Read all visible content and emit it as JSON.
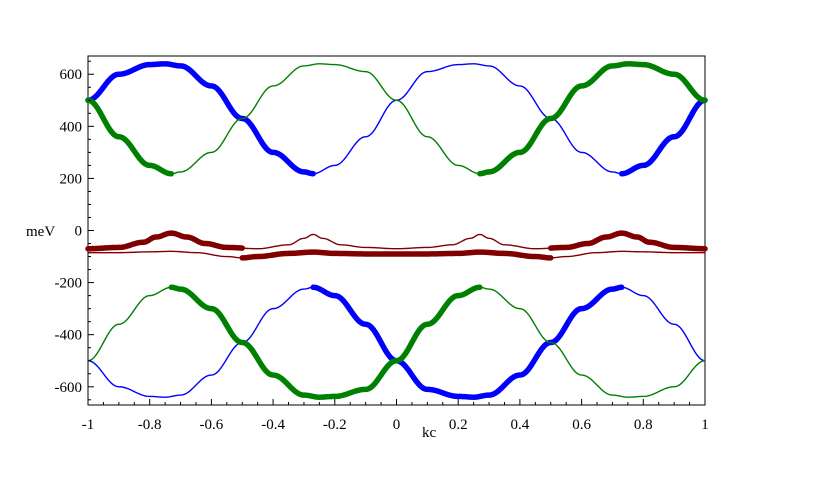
{
  "chart_data": {
    "type": "line",
    "title": "",
    "xlabel": "kc",
    "ylabel": "meV",
    "xlim": [
      -1,
      1
    ],
    "ylim": [
      -670,
      670
    ],
    "x_ticks": [
      -1,
      -0.8,
      -0.6,
      -0.4,
      -0.2,
      0,
      0.2,
      0.4,
      0.6,
      0.8,
      1
    ],
    "x_tick_labels": [
      "-1",
      "-0.8",
      "-0.6",
      "-0.4",
      "-0.2",
      "0",
      "0.2",
      "0.4",
      "0.6",
      "0.8",
      "1"
    ],
    "y_ticks": [
      -600,
      -400,
      -200,
      0,
      200,
      400,
      600
    ],
    "y_tick_labels": [
      "-600",
      "-400",
      "-200",
      "0",
      "200",
      "400",
      "600"
    ],
    "grid": false,
    "colors": {
      "blue": "#0000ff",
      "green": "#008000",
      "darkred": "#800000"
    },
    "series": [
      {
        "color": "#0000ff",
        "points": [
          [
            -1,
            500
          ],
          [
            -0.9,
            600
          ],
          [
            -0.8,
            637
          ],
          [
            -0.75,
            640
          ],
          [
            -0.7,
            632
          ],
          [
            -0.6,
            555
          ],
          [
            -0.5,
            430
          ],
          [
            -0.4,
            300
          ],
          [
            -0.3,
            225
          ],
          [
            -0.27,
            218
          ],
          [
            -0.2,
            250
          ],
          [
            -0.1,
            360
          ],
          [
            0,
            500
          ],
          [
            0.1,
            610
          ],
          [
            0.2,
            637
          ],
          [
            0.25,
            640
          ],
          [
            0.3,
            632
          ],
          [
            0.4,
            555
          ],
          [
            0.5,
            430
          ],
          [
            0.6,
            300
          ],
          [
            0.7,
            225
          ],
          [
            0.73,
            218
          ],
          [
            0.8,
            250
          ],
          [
            0.9,
            360
          ],
          [
            1,
            500
          ]
        ],
        "thick_ranges": [
          [
            -1,
            -0.27
          ],
          [
            0.73,
            1
          ]
        ]
      },
      {
        "color": "#008000",
        "points": [
          [
            -1,
            500
          ],
          [
            -0.9,
            360
          ],
          [
            -0.8,
            250
          ],
          [
            -0.73,
            218
          ],
          [
            -0.7,
            225
          ],
          [
            -0.6,
            300
          ],
          [
            -0.5,
            430
          ],
          [
            -0.4,
            555
          ],
          [
            -0.3,
            632
          ],
          [
            -0.25,
            640
          ],
          [
            -0.2,
            637
          ],
          [
            -0.1,
            610
          ],
          [
            0,
            500
          ],
          [
            0.1,
            360
          ],
          [
            0.2,
            250
          ],
          [
            0.27,
            218
          ],
          [
            0.3,
            225
          ],
          [
            0.4,
            300
          ],
          [
            0.5,
            430
          ],
          [
            0.6,
            555
          ],
          [
            0.7,
            632
          ],
          [
            0.75,
            640
          ],
          [
            0.8,
            637
          ],
          [
            0.9,
            600
          ],
          [
            1,
            500
          ]
        ],
        "thick_ranges": [
          [
            -1,
            -0.73
          ],
          [
            0.27,
            1
          ]
        ]
      },
      {
        "color": "#0000ff",
        "points": [
          [
            -1,
            -500
          ],
          [
            -0.9,
            -600
          ],
          [
            -0.8,
            -637
          ],
          [
            -0.75,
            -640
          ],
          [
            -0.7,
            -632
          ],
          [
            -0.6,
            -555
          ],
          [
            -0.5,
            -430
          ],
          [
            -0.4,
            -300
          ],
          [
            -0.3,
            -225
          ],
          [
            -0.27,
            -218
          ],
          [
            -0.2,
            -250
          ],
          [
            -0.1,
            -360
          ],
          [
            0,
            -500
          ],
          [
            0.1,
            -610
          ],
          [
            0.2,
            -637
          ],
          [
            0.25,
            -640
          ],
          [
            0.3,
            -632
          ],
          [
            0.4,
            -555
          ],
          [
            0.5,
            -430
          ],
          [
            0.6,
            -300
          ],
          [
            0.7,
            -225
          ],
          [
            0.73,
            -218
          ],
          [
            0.8,
            -250
          ],
          [
            0.9,
            -360
          ],
          [
            1,
            -500
          ]
        ],
        "thick_ranges": [
          [
            -0.27,
            0.73
          ]
        ]
      },
      {
        "color": "#008000",
        "points": [
          [
            -1,
            -500
          ],
          [
            -0.9,
            -360
          ],
          [
            -0.8,
            -250
          ],
          [
            -0.73,
            -218
          ],
          [
            -0.7,
            -225
          ],
          [
            -0.6,
            -300
          ],
          [
            -0.5,
            -430
          ],
          [
            -0.4,
            -555
          ],
          [
            -0.3,
            -632
          ],
          [
            -0.25,
            -640
          ],
          [
            -0.2,
            -637
          ],
          [
            -0.1,
            -610
          ],
          [
            0,
            -500
          ],
          [
            0.1,
            -360
          ],
          [
            0.2,
            -250
          ],
          [
            0.27,
            -218
          ],
          [
            0.3,
            -225
          ],
          [
            0.4,
            -300
          ],
          [
            0.5,
            -430
          ],
          [
            0.6,
            -555
          ],
          [
            0.7,
            -632
          ],
          [
            0.75,
            -640
          ],
          [
            0.8,
            -637
          ],
          [
            0.9,
            -600
          ],
          [
            1,
            -500
          ]
        ],
        "thick_ranges": [
          [
            -0.73,
            0.27
          ]
        ]
      },
      {
        "color": "#800000",
        "points": [
          [
            -1,
            -70
          ],
          [
            -0.9,
            -65
          ],
          [
            -0.82,
            -45
          ],
          [
            -0.78,
            -25
          ],
          [
            -0.73,
            -10
          ],
          [
            -0.68,
            -25
          ],
          [
            -0.62,
            -50
          ],
          [
            -0.55,
            -65
          ],
          [
            -0.45,
            -70
          ],
          [
            -0.35,
            -55
          ],
          [
            -0.3,
            -30
          ],
          [
            -0.27,
            -15
          ],
          [
            -0.24,
            -30
          ],
          [
            -0.18,
            -55
          ],
          [
            -0.1,
            -65
          ],
          [
            0,
            -70
          ],
          [
            0.1,
            -65
          ],
          [
            0.18,
            -55
          ],
          [
            0.24,
            -30
          ],
          [
            0.27,
            -15
          ],
          [
            0.3,
            -30
          ],
          [
            0.35,
            -55
          ],
          [
            0.45,
            -70
          ],
          [
            0.55,
            -65
          ],
          [
            0.62,
            -50
          ],
          [
            0.68,
            -25
          ],
          [
            0.73,
            -10
          ],
          [
            0.78,
            -25
          ],
          [
            0.82,
            -45
          ],
          [
            0.9,
            -65
          ],
          [
            1,
            -70
          ]
        ],
        "thick_ranges": [
          [
            -1,
            -0.5
          ],
          [
            0.5,
            1
          ]
        ]
      },
      {
        "color": "#800000",
        "points": [
          [
            -1,
            -85
          ],
          [
            -0.9,
            -85
          ],
          [
            -0.8,
            -82
          ],
          [
            -0.73,
            -80
          ],
          [
            -0.65,
            -85
          ],
          [
            -0.55,
            -100
          ],
          [
            -0.5,
            -105
          ],
          [
            -0.45,
            -100
          ],
          [
            -0.35,
            -88
          ],
          [
            -0.27,
            -83
          ],
          [
            -0.2,
            -88
          ],
          [
            -0.1,
            -90
          ],
          [
            0,
            -90
          ],
          [
            0.1,
            -90
          ],
          [
            0.2,
            -88
          ],
          [
            0.27,
            -83
          ],
          [
            0.35,
            -88
          ],
          [
            0.45,
            -100
          ],
          [
            0.5,
            -105
          ],
          [
            0.55,
            -100
          ],
          [
            0.65,
            -85
          ],
          [
            0.73,
            -80
          ],
          [
            0.8,
            -82
          ],
          [
            0.9,
            -85
          ],
          [
            1,
            -85
          ]
        ],
        "thick_ranges": [
          [
            -0.5,
            0.5
          ]
        ]
      }
    ]
  }
}
